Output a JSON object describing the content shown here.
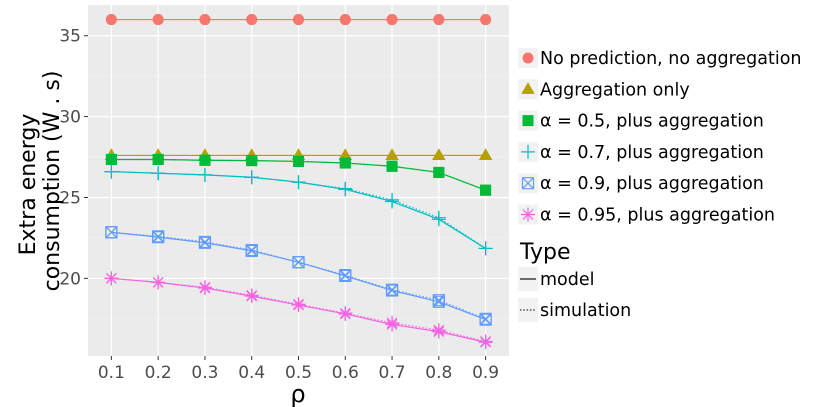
{
  "chart_data": {
    "type": "line",
    "xlabel": "ρ",
    "ylabel_lines": [
      "Extra energy",
      "consumption (W . s)"
    ],
    "x": [
      0.1,
      0.2,
      0.3,
      0.4,
      0.5,
      0.6,
      0.7,
      0.8,
      0.9
    ],
    "x_tick_labels": [
      "0.1",
      "0.2",
      "0.3",
      "0.4",
      "0.5",
      "0.6",
      "0.7",
      "0.8",
      "0.9"
    ],
    "y_ticks": [
      20,
      25,
      30,
      35
    ],
    "y_tick_labels": [
      "20",
      "25",
      "30",
      "35"
    ],
    "xlim": [
      0.05,
      0.95
    ],
    "ylim": [
      15.2,
      36.9
    ],
    "grid": true,
    "legend_position": "right",
    "series": [
      {
        "name": "No prediction, no aggregation",
        "color": "#F8766D",
        "marker": "circle",
        "model": [
          36.0,
          36.0,
          36.0,
          36.0,
          36.0,
          36.0,
          36.0,
          36.0,
          36.0
        ],
        "simulation": [
          36.0,
          36.0,
          36.0,
          36.0,
          36.0,
          36.0,
          36.0,
          36.0,
          36.0
        ]
      },
      {
        "name": "Aggregation only",
        "color": "#B79F00",
        "marker": "triangle",
        "model": [
          27.6,
          27.6,
          27.6,
          27.6,
          27.6,
          27.6,
          27.6,
          27.6,
          27.6
        ],
        "simulation": [
          27.6,
          27.6,
          27.6,
          27.6,
          27.6,
          27.6,
          27.6,
          27.6,
          27.6
        ]
      },
      {
        "name": "α = 0.5, plus aggregation",
        "color": "#00BA38",
        "marker": "square",
        "model": [
          27.35,
          27.35,
          27.3,
          27.28,
          27.23,
          27.13,
          26.93,
          26.55,
          25.45
        ],
        "simulation": [
          27.35,
          27.35,
          27.3,
          27.28,
          27.23,
          27.13,
          26.93,
          26.55,
          25.45
        ]
      },
      {
        "name": "α = 0.7, plus aggregation",
        "color": "#00BFC4",
        "marker": "plus",
        "model": [
          26.6,
          26.5,
          26.4,
          26.25,
          25.95,
          25.5,
          24.75,
          23.65,
          21.85
        ],
        "simulation": [
          26.6,
          26.5,
          26.4,
          26.25,
          25.95,
          25.55,
          24.85,
          23.75,
          21.85
        ]
      },
      {
        "name": "α = 0.9, plus aggregation",
        "color": "#619CFF",
        "marker": "square-x",
        "model": [
          22.85,
          22.55,
          22.2,
          21.7,
          21.0,
          20.15,
          19.25,
          18.55,
          17.45
        ],
        "simulation": [
          22.85,
          22.6,
          22.25,
          21.75,
          21.0,
          20.2,
          19.3,
          18.65,
          17.5
        ]
      },
      {
        "name": "α = 0.95, plus aggregation",
        "color": "#F564E3",
        "marker": "asterisk",
        "model": [
          20.0,
          19.75,
          19.4,
          18.9,
          18.35,
          17.8,
          17.15,
          16.7,
          16.05
        ],
        "simulation": [
          20.0,
          19.75,
          19.45,
          18.95,
          18.4,
          17.85,
          17.25,
          16.8,
          16.1
        ]
      }
    ],
    "type_legend": {
      "title": "Type",
      "entries": [
        {
          "name": "model",
          "style": "solid"
        },
        {
          "name": "simulation",
          "style": "dotted"
        }
      ]
    }
  }
}
